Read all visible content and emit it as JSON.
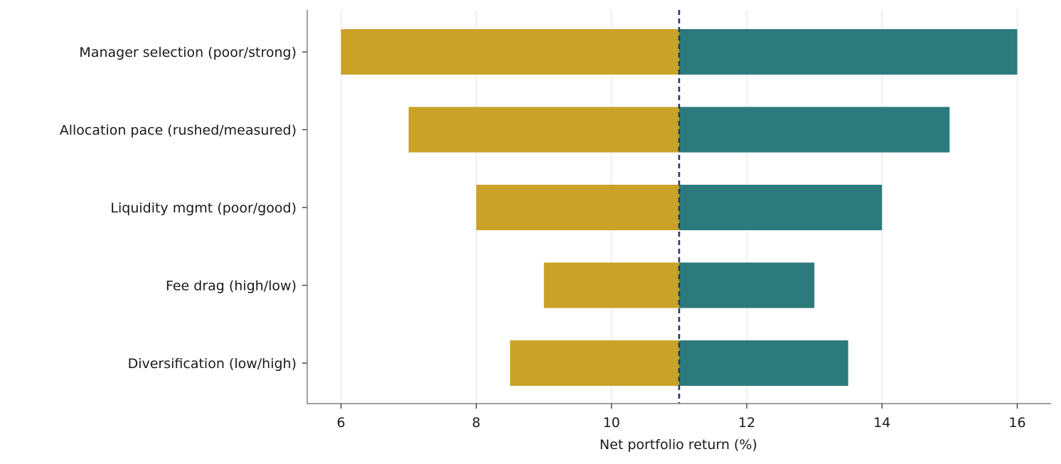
{
  "chart_data": {
    "type": "bar",
    "orientation": "horizontal",
    "subtype": "tornado",
    "title": "",
    "xlabel": "Net portfolio return (%)",
    "ylabel": "",
    "xlim": [
      5.5,
      16.5
    ],
    "xticks": [
      6,
      8,
      10,
      12,
      14,
      16
    ],
    "baseline": 11,
    "grid": "vertical",
    "categories": [
      "Manager selection (poor/strong)",
      "Allocation pace (rushed/measured)",
      "Liquidity mgmt (poor/good)",
      "Fee drag (high/low)",
      "Diversification (low/high)"
    ],
    "low_values": [
      6,
      7,
      8,
      9,
      8.5
    ],
    "high_values": [
      16,
      15,
      14,
      13,
      13.5
    ],
    "colors": {
      "low": "#C9A227",
      "high": "#2C7A7B",
      "baseline": "#1F3A68",
      "grid": "#E6E6E6",
      "axis": "#808080"
    }
  }
}
